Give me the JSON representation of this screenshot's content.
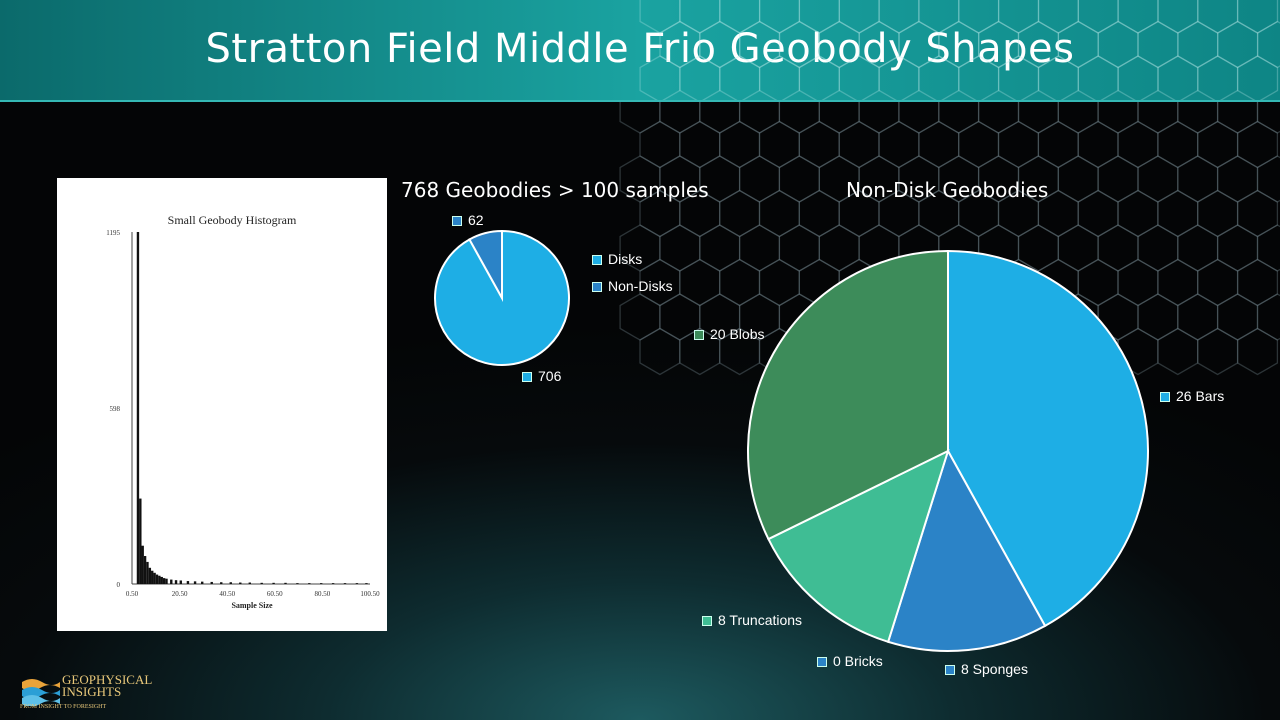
{
  "slide": {
    "title": "Stratton Field Middle Frio Geobody Shapes"
  },
  "colors": {
    "accent": "#1aa3a1",
    "pie_light_blue": "#1eaee5",
    "pie_blue": "#2b83c7",
    "pie_green": "#3d8c5a",
    "pie_teal": "#3fbd94"
  },
  "logo": {
    "line1": "GEOPHYSICAL",
    "line2": "INSIGHTS",
    "tagline": "FROM INSIGHT TO FORESIGHT"
  },
  "chart_data": [
    {
      "type": "bar",
      "title": "Small Geobody Histogram",
      "xlabel": "Sample Size",
      "ylabel": "",
      "x_ticks": [
        "0.50",
        "20.50",
        "40.50",
        "60.50",
        "80.50",
        "100.50"
      ],
      "y_ticks": [
        "1195",
        "598",
        "0"
      ],
      "xlim": [
        0.5,
        100.5
      ],
      "ylim": [
        0,
        1195
      ],
      "x": [
        3,
        4,
        5,
        6,
        7,
        8,
        9,
        10,
        11,
        12,
        13,
        14,
        15,
        17,
        19,
        21,
        24,
        27,
        30,
        34,
        38,
        42,
        46,
        50,
        55,
        60,
        65,
        70,
        75,
        80,
        85,
        90,
        95,
        99
      ],
      "values": [
        1195,
        290,
        130,
        95,
        75,
        55,
        45,
        38,
        32,
        28,
        24,
        20,
        18,
        15,
        13,
        12,
        10,
        9,
        8,
        7,
        6,
        6,
        5,
        5,
        4,
        4,
        4,
        3,
        3,
        3,
        3,
        3,
        3,
        3
      ]
    },
    {
      "type": "pie",
      "title": "768 Geobodies > 100 samples",
      "legend": [
        "Disks",
        "Non-Disks"
      ],
      "slices": [
        {
          "label": "706",
          "name": "Disks",
          "value": 706,
          "color": "#1eaee5"
        },
        {
          "label": "62",
          "name": "Non-Disks",
          "value": 62,
          "color": "#2b83c7"
        }
      ]
    },
    {
      "type": "pie",
      "title": "Non-Disk Geobodies",
      "slices": [
        {
          "label": "26 Bars",
          "value": 26,
          "color": "#1eaee5"
        },
        {
          "label": "8 Sponges",
          "value": 8,
          "color": "#2b83c7"
        },
        {
          "label": "0 Bricks",
          "value": 0,
          "color": "#2b83c7"
        },
        {
          "label": "8 Truncations",
          "value": 8,
          "color": "#3fbd94"
        },
        {
          "label": "20 Blobs",
          "value": 20,
          "color": "#3d8c5a"
        }
      ]
    }
  ]
}
